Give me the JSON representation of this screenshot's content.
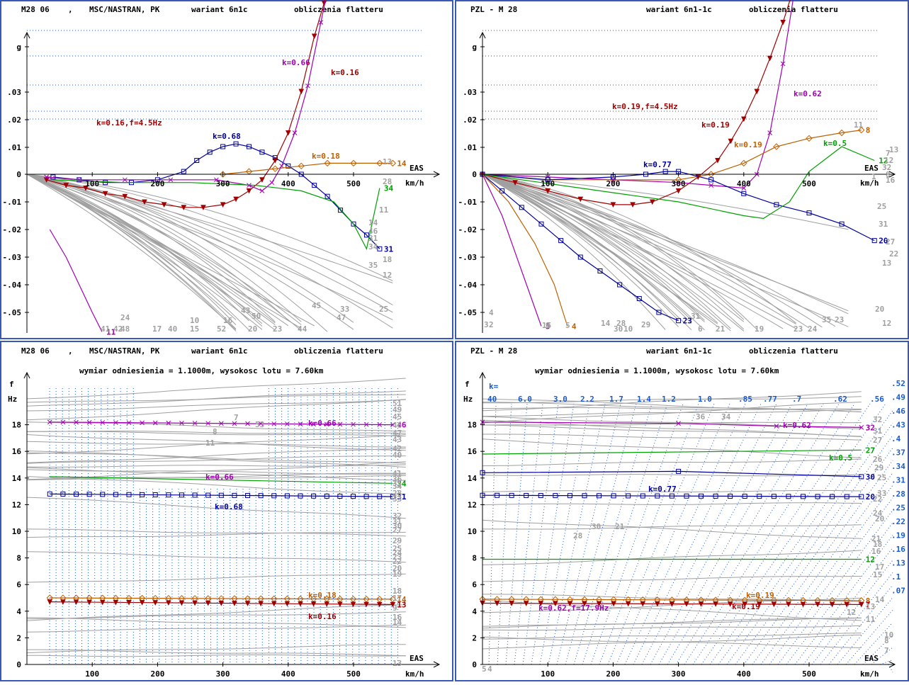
{
  "colors": {
    "frame": "#3a58b8",
    "gray": "#a0a0a0",
    "purple": "#a000b0",
    "darkred": "#a00000",
    "orange": "#c06000",
    "navy": "#00009a",
    "green": "#00a000",
    "blue_dot": "#1a5ad0"
  },
  "panels": [
    {
      "id": "tl",
      "header": {
        "model": "M28 06",
        "sep": ",",
        "solver": "MSC/NASTRAN, PK",
        "variant": "wariant 6n1c",
        "title": "obliczenia flatteru"
      },
      "subheader": "",
      "xlabel_top": "EAS",
      "xlabel_bottom": "km/h",
      "ytop": "g",
      "ylabel_unit": "",
      "kscale": {
        "label": "",
        "values": []
      }
    },
    {
      "id": "tr",
      "header": {
        "model": "PZL - M 28",
        "sep": "",
        "solver": "",
        "variant": "wariant 6n1-1c",
        "title": "obliczenia flatteru"
      },
      "subheader": "",
      "xlabel_top": "EAS",
      "xlabel_bottom": "km/h",
      "ytop": "g",
      "ylabel_unit": "",
      "kscale": {
        "label": "",
        "values": []
      }
    },
    {
      "id": "bl",
      "header": {
        "model": "M28 06",
        "sep": ",",
        "solver": "MSC/NASTRAN, PK",
        "variant": "wariant 6n1c",
        "title": "obliczenia flatteru"
      },
      "subheader": "wymiar odniesienia = 1.1000m, wysokosc lotu = 7.60km",
      "xlabel_top": "EAS",
      "xlabel_bottom": "km/h",
      "ytop": "f",
      "ylabel_unit": "Hz",
      "kscale": {
        "label": "",
        "values": []
      }
    },
    {
      "id": "br",
      "header": {
        "model": "PZL - M 28",
        "sep": "",
        "solver": "",
        "variant": "wariant 6n1-1c",
        "title": "obliczenia flatteru"
      },
      "subheader": "wymiar odniesienia = 1.1000m, wysokosc lotu = 7.60km",
      "xlabel_top": "EAS",
      "xlabel_bottom": "km/h",
      "ytop": "f",
      "ylabel_unit": "Hz",
      "kscale": {
        "label": "k=",
        "values": [
          "40",
          "6.0",
          "3.0",
          "2.2",
          "1.7",
          "1.4",
          "1.2",
          "1.0",
          ".85",
          ".77",
          ".7",
          ".62",
          ".56"
        ],
        "right_values": [
          ".52",
          ".49",
          ".46",
          ".43",
          ".4",
          ".37",
          ".34",
          ".31",
          ".28",
          ".25",
          ".22",
          ".19",
          ".16",
          ".13",
          ".1",
          ".07"
        ]
      }
    }
  ],
  "chart_data": [
    {
      "panel": "tl",
      "type": "line",
      "title": "M28 06 , MSC/NASTRAN, PK wariant 6n1c obliczenia flatteru",
      "xlabel": "EAS km/h",
      "ylabel": "g",
      "xlim": [
        0,
        600
      ],
      "ylim": [
        -0.055,
        0.095
      ],
      "xticks": [
        100,
        200,
        300,
        400,
        500
      ],
      "yticks": [
        {
          "v": 0.09,
          "t": "g"
        },
        {
          "v": 0.03,
          "t": ".03"
        },
        {
          "v": 0.02,
          "t": ".02"
        },
        {
          "v": 0.01,
          "t": ".01"
        },
        {
          "v": 0,
          "t": "0"
        },
        {
          "v": -0.01,
          "t": "-.01"
        },
        {
          "v": -0.02,
          "t": "-.02"
        },
        {
          "v": -0.03,
          "t": "-.03"
        },
        {
          "v": -0.04,
          "t": "-.04"
        },
        {
          "v": -0.05,
          "t": "-.05"
        }
      ],
      "series": [
        {
          "name": "31",
          "color": "navy",
          "marker": "square",
          "x": [
            40,
            80,
            120,
            160,
            200,
            240,
            260,
            280,
            300,
            320,
            340,
            360,
            380,
            400,
            420,
            440,
            460,
            480,
            500,
            520,
            540
          ],
          "y": [
            -0.001,
            -0.002,
            -0.003,
            -0.003,
            -0.002,
            0.001,
            0.005,
            0.008,
            0.01,
            0.011,
            0.01,
            0.008,
            0.006,
            0.003,
            0.0,
            -0.004,
            -0.008,
            -0.013,
            -0.018,
            -0.022,
            -0.027
          ]
        },
        {
          "name": "13",
          "color": "darkred",
          "marker": "tri",
          "x": [
            30,
            60,
            90,
            120,
            150,
            180,
            210,
            240,
            270,
            300,
            320,
            340,
            360,
            380,
            400,
            420,
            440,
            455,
            470
          ],
          "y": [
            -0.002,
            -0.004,
            -0.005,
            -0.007,
            -0.008,
            -0.01,
            -0.011,
            -0.012,
            -0.012,
            -0.011,
            -0.009,
            -0.006,
            -0.002,
            0.005,
            0.015,
            0.03,
            0.05,
            0.062,
            0.075
          ]
        },
        {
          "name": "46",
          "color": "purple",
          "marker": "x",
          "x": [
            30,
            80,
            150,
            220,
            290,
            340,
            360,
            375,
            390,
            410,
            430,
            450,
            465
          ],
          "y": [
            -0.001,
            -0.002,
            -0.002,
            -0.002,
            -0.002,
            -0.004,
            -0.006,
            -0.003,
            0.003,
            0.015,
            0.032,
            0.055,
            0.072
          ]
        },
        {
          "name": "14",
          "color": "orange",
          "marker": "diamond",
          "x": [
            300,
            340,
            380,
            420,
            460,
            500,
            540,
            560
          ],
          "y": [
            0.0,
            0.001,
            0.002,
            0.003,
            0.004,
            0.004,
            0.004,
            0.004
          ]
        },
        {
          "name": "34",
          "color": "green",
          "marker": "none",
          "x": [
            40,
            150,
            250,
            350,
            420,
            470,
            500,
            520,
            540
          ],
          "y": [
            -0.002,
            -0.003,
            -0.003,
            -0.004,
            -0.006,
            -0.01,
            -0.018,
            -0.027,
            -0.005
          ]
        },
        {
          "name": "11",
          "color": "purple",
          "marker": "none",
          "x": [
            35,
            60,
            80,
            100,
            115
          ],
          "y": [
            -0.02,
            -0.03,
            -0.04,
            -0.05,
            -0.057
          ]
        }
      ],
      "legend_labels": [
        "13",
        "11",
        "14",
        "46",
        "31",
        "34",
        "12",
        "25",
        "18",
        "33",
        "24",
        "48",
        "17",
        "40",
        "10",
        "15",
        "52",
        "16",
        "43",
        "50",
        "23",
        "44",
        "45",
        "35",
        "28",
        "20",
        "47",
        "41",
        "42"
      ],
      "annotations": [
        "k=0.68",
        "k=0.18",
        "k=0.66",
        "k=0.16",
        "k=0.16,f=4.5Hz"
      ]
    },
    {
      "panel": "tr",
      "type": "line",
      "title": "PZL - M 28 wariant 6n1-1c obliczenia flatteru",
      "xlabel": "EAS km/h",
      "ylabel": "g",
      "xlim": [
        0,
        600
      ],
      "ylim": [
        -0.055,
        0.095
      ],
      "xticks": [
        100,
        200,
        300,
        400,
        500
      ],
      "yticks": [
        {
          "v": 0.09,
          "t": "g"
        },
        {
          "v": 0.03,
          "t": ".03"
        },
        {
          "v": 0.02,
          "t": ".02"
        },
        {
          "v": 0.01,
          "t": ".01"
        },
        {
          "v": 0,
          "t": "0"
        },
        {
          "v": -0.01,
          "t": "-.01"
        },
        {
          "v": -0.02,
          "t": "-.02"
        },
        {
          "v": -0.03,
          "t": "-.03"
        },
        {
          "v": -0.04,
          "t": "-.04"
        },
        {
          "v": -0.05,
          "t": "-.05"
        }
      ],
      "series": [
        {
          "name": "7",
          "color": "darkred",
          "marker": "tri",
          "x": [
            0,
            50,
            100,
            150,
            200,
            230,
            260,
            300,
            330,
            360,
            380,
            400,
            420,
            440,
            460,
            480
          ],
          "y": [
            0,
            -0.003,
            -0.006,
            -0.009,
            -0.011,
            -0.011,
            -0.01,
            -0.006,
            -0.001,
            0.005,
            0.012,
            0.02,
            0.03,
            0.042,
            0.055,
            0.07
          ]
        },
        {
          "name": "32",
          "color": "purple",
          "marker": "x",
          "x": [
            0,
            100,
            200,
            300,
            350,
            400,
            420,
            440,
            460,
            480
          ],
          "y": [
            0,
            -0.001,
            -0.002,
            -0.003,
            -0.004,
            -0.005,
            0.0,
            0.015,
            0.04,
            0.07
          ]
        },
        {
          "name": "8",
          "color": "orange",
          "marker": "diamond",
          "x": [
            0,
            100,
            200,
            300,
            350,
            400,
            450,
            500,
            550,
            580
          ],
          "y": [
            0,
            -0.002,
            -0.002,
            -0.002,
            0.0,
            0.004,
            0.01,
            0.013,
            0.015,
            0.016
          ]
        },
        {
          "name": "20",
          "color": "navy",
          "marker": "square",
          "x": [
            0,
            100,
            200,
            250,
            280,
            300,
            350,
            400,
            450,
            500,
            550,
            600
          ],
          "y": [
            0,
            -0.002,
            -0.001,
            0.0,
            0.001,
            0.001,
            -0.002,
            -0.007,
            -0.011,
            -0.014,
            -0.018,
            -0.024
          ]
        },
        {
          "name": "23",
          "color": "navy",
          "marker": "square",
          "x": [
            0,
            30,
            60,
            90,
            120,
            150,
            180,
            210,
            240,
            270,
            300
          ],
          "y": [
            0,
            -0.006,
            -0.012,
            -0.018,
            -0.024,
            -0.03,
            -0.035,
            -0.04,
            -0.045,
            -0.05,
            -0.053
          ]
        },
        {
          "name": "12",
          "color": "green",
          "marker": "none",
          "x": [
            0,
            150,
            300,
            400,
            430,
            470,
            500,
            550,
            600
          ],
          "y": [
            0,
            -0.005,
            -0.01,
            -0.015,
            -0.016,
            -0.01,
            0.001,
            0.01,
            0.005
          ]
        },
        {
          "name": "5",
          "color": "purple",
          "marker": "none",
          "x": [
            0,
            30,
            60,
            90
          ],
          "y": [
            0,
            -0.015,
            -0.035,
            -0.055
          ]
        },
        {
          "name": "4",
          "color": "orange",
          "marker": "none",
          "x": [
            0,
            40,
            80,
            110,
            130
          ],
          "y": [
            0,
            -0.01,
            -0.025,
            -0.04,
            -0.055
          ]
        }
      ],
      "legend_labels": [
        "11",
        "13",
        "7",
        "32",
        "8",
        "25",
        "31",
        "27",
        "22",
        "13",
        "35",
        "12",
        "20",
        "23",
        "24",
        "23",
        "19",
        "31",
        "6",
        "21",
        "29",
        "14",
        "30",
        "28",
        "15",
        "5",
        "9",
        "4",
        "3",
        "2",
        "10",
        "16",
        "12",
        "1"
      ],
      "annotations": [
        "k=0.19,f=4.5Hz",
        "k=0.19",
        "k=0.62",
        "k=0.19",
        "k=0.5",
        "k=0.77"
      ]
    },
    {
      "panel": "bl",
      "type": "line",
      "title": "M28 06 , MSC/NASTRAN, PK wariant 6n1c obliczenia flatteru",
      "xlabel": "EAS km/h",
      "ylabel": "f Hz",
      "xlim": [
        0,
        620
      ],
      "ylim": [
        0,
        21
      ],
      "xticks": [
        100,
        200,
        300,
        400,
        500
      ],
      "yticks": [
        {
          "v": 18,
          "t": "18"
        },
        {
          "v": 16,
          "t": "16"
        },
        {
          "v": 14,
          "t": "14"
        },
        {
          "v": 12,
          "t": "12"
        },
        {
          "v": 10,
          "t": "10"
        },
        {
          "v": 8,
          "t": "8"
        },
        {
          "v": 6,
          "t": "6"
        },
        {
          "v": 4,
          "t": "4"
        },
        {
          "v": 2,
          "t": "2"
        },
        {
          "v": 0,
          "t": "0"
        }
      ],
      "series": [
        {
          "name": "46",
          "color": "purple",
          "marker": "x",
          "x": [
            35,
            560
          ],
          "y": [
            18.2,
            18.0
          ]
        },
        {
          "name": "31",
          "color": "navy",
          "marker": "square",
          "x": [
            35,
            560
          ],
          "y": [
            12.8,
            12.6
          ]
        },
        {
          "name": "14",
          "color": "orange",
          "marker": "diamond",
          "x": [
            35,
            560
          ],
          "y": [
            5.0,
            4.9
          ]
        },
        {
          "name": "13",
          "color": "darkred",
          "marker": "tri",
          "x": [
            35,
            560
          ],
          "y": [
            4.7,
            4.5
          ]
        },
        {
          "name": "34",
          "color": "green",
          "marker": "none",
          "x": [
            35,
            560
          ],
          "y": [
            14.1,
            13.6
          ]
        }
      ],
      "legend_labels": [
        "51",
        "49",
        "45",
        "46",
        "47",
        "43",
        "42",
        "40",
        "41",
        "36",
        "35",
        "34",
        "28",
        "33",
        "32",
        "31",
        "30",
        "27",
        "29",
        "25",
        "24",
        "23",
        "22",
        "20",
        "19",
        "18",
        "17",
        "9",
        "16",
        "14",
        "13",
        "11",
        "8",
        "7",
        "53"
      ],
      "annotations": [
        "k=0.66",
        "k=0.66",
        "k=0.68",
        "k=0.18",
        "k=0.16"
      ]
    },
    {
      "panel": "br",
      "type": "line",
      "title": "PZL - M 28 wariant 6n1-1c obliczenia flatteru",
      "xlabel": "EAS km/h",
      "ylabel": "f Hz",
      "xlim": [
        0,
        620
      ],
      "ylim": [
        0,
        21
      ],
      "xticks": [
        100,
        200,
        300,
        400,
        500
      ],
      "yticks": [
        {
          "v": 18,
          "t": "18"
        },
        {
          "v": 16,
          "t": "16"
        },
        {
          "v": 14,
          "t": "14"
        },
        {
          "v": 12,
          "t": "12"
        },
        {
          "v": 10,
          "t": "10"
        },
        {
          "v": 8,
          "t": "8"
        },
        {
          "v": 6,
          "t": "6"
        },
        {
          "v": 4,
          "t": "4"
        },
        {
          "v": 2,
          "t": "2"
        },
        {
          "v": 0,
          "t": "0"
        }
      ],
      "series": [
        {
          "name": "32",
          "color": "purple",
          "marker": "x",
          "x": [
            0,
            300,
            450,
            580
          ],
          "y": [
            18.2,
            18.1,
            17.9,
            17.8
          ]
        },
        {
          "name": "30",
          "color": "navy",
          "marker": "square",
          "x": [
            0,
            300,
            580
          ],
          "y": [
            14.4,
            14.5,
            14.1
          ]
        },
        {
          "name": "20",
          "color": "navy",
          "marker": "square",
          "x": [
            0,
            580
          ],
          "y": [
            12.7,
            12.6
          ]
        },
        {
          "name": "8",
          "color": "orange",
          "marker": "diamond",
          "x": [
            0,
            580
          ],
          "y": [
            4.9,
            4.8
          ]
        },
        {
          "name": "7",
          "color": "darkred",
          "marker": "tri",
          "x": [
            0,
            580
          ],
          "y": [
            4.6,
            4.5
          ]
        },
        {
          "name": "27",
          "color": "green",
          "marker": "none",
          "x": [
            0,
            580
          ],
          "y": [
            15.8,
            16.1
          ]
        },
        {
          "name": "12",
          "color": "green",
          "marker": "none",
          "x": [
            0,
            580
          ],
          "y": [
            7.9,
            7.9
          ]
        }
      ],
      "legend_labels": [
        "36",
        "34",
        "32",
        "31",
        "27",
        "26",
        "29",
        "25",
        "33",
        "22",
        "24",
        "20",
        "21",
        "18",
        "16",
        "17",
        "15",
        "14",
        "13",
        "12",
        "11",
        "10",
        "8",
        "7",
        "5",
        "4",
        "30",
        "21",
        "28"
      ],
      "annotations": [
        "k=0.62",
        "k=0.5",
        "k=0.77",
        "k=0.62,f=17.9Hz",
        "k=0.19",
        "k=0.19"
      ]
    }
  ]
}
